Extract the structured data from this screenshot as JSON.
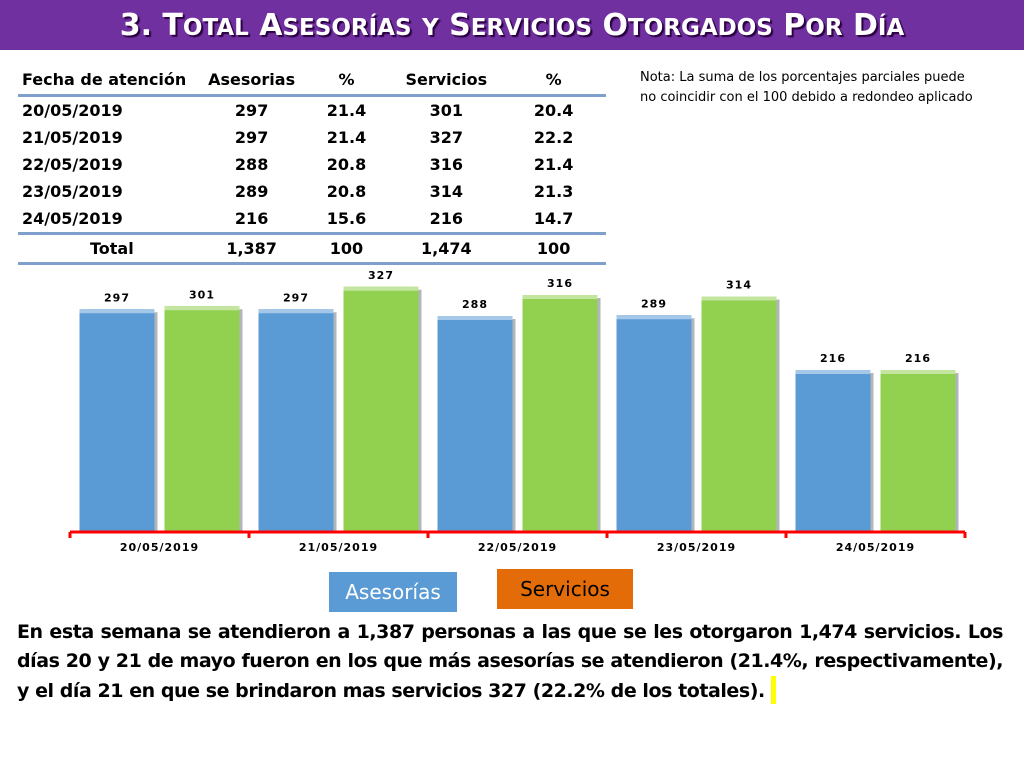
{
  "title": {
    "number": "3.",
    "text": "Total Asesorías y Servicios otorgados por día"
  },
  "table": {
    "headers": [
      "Fecha de atención",
      "Asesorias",
      "%",
      "Servicios",
      "%"
    ],
    "rows": [
      [
        "20/05/2019",
        "297",
        "21.4",
        "301",
        "20.4"
      ],
      [
        "21/05/2019",
        "297",
        "21.4",
        "327",
        "22.2"
      ],
      [
        "22/05/2019",
        "288",
        "20.8",
        "316",
        "21.4"
      ],
      [
        "23/05/2019",
        "289",
        "20.8",
        "314",
        "21.3"
      ],
      [
        "24/05/2019",
        "216",
        "15.6",
        "216",
        "14.7"
      ]
    ],
    "total": [
      "Total",
      "1,387",
      "100",
      "1,474",
      "100"
    ]
  },
  "note": "Nota: La suma de los porcentajes parciales puede no coincidir con el 100 debido a redondeo aplicado",
  "chart_data": {
    "type": "bar",
    "categories": [
      "20/05/2019",
      "21/05/2019",
      "22/05/2019",
      "23/05/2019",
      "24/05/2019"
    ],
    "series": [
      {
        "name": "Asesorías",
        "values": [
          297,
          297,
          288,
          289,
          216
        ],
        "color": "#5b9bd5"
      },
      {
        "name": "Servicios",
        "values": [
          301,
          327,
          316,
          314,
          216
        ],
        "color": "#92d050"
      }
    ],
    "ylim": [
      0,
      340
    ],
    "axis_color": "#ff0000",
    "grid": false,
    "legend_position": "bottom-center"
  },
  "legend": {
    "asesorias": "Asesorías",
    "servicios": "Servicios"
  },
  "summary": "En esta semana se atendieron a 1,387 personas a las que se les otorgaron 1,474 servicios. Los días 20 y 21 de mayo fueron en los que más asesorías se atendieron (21.4%, respectivamente), y el día 21 en que se brindaron mas servicios 327 (22.2% de los totales)."
}
